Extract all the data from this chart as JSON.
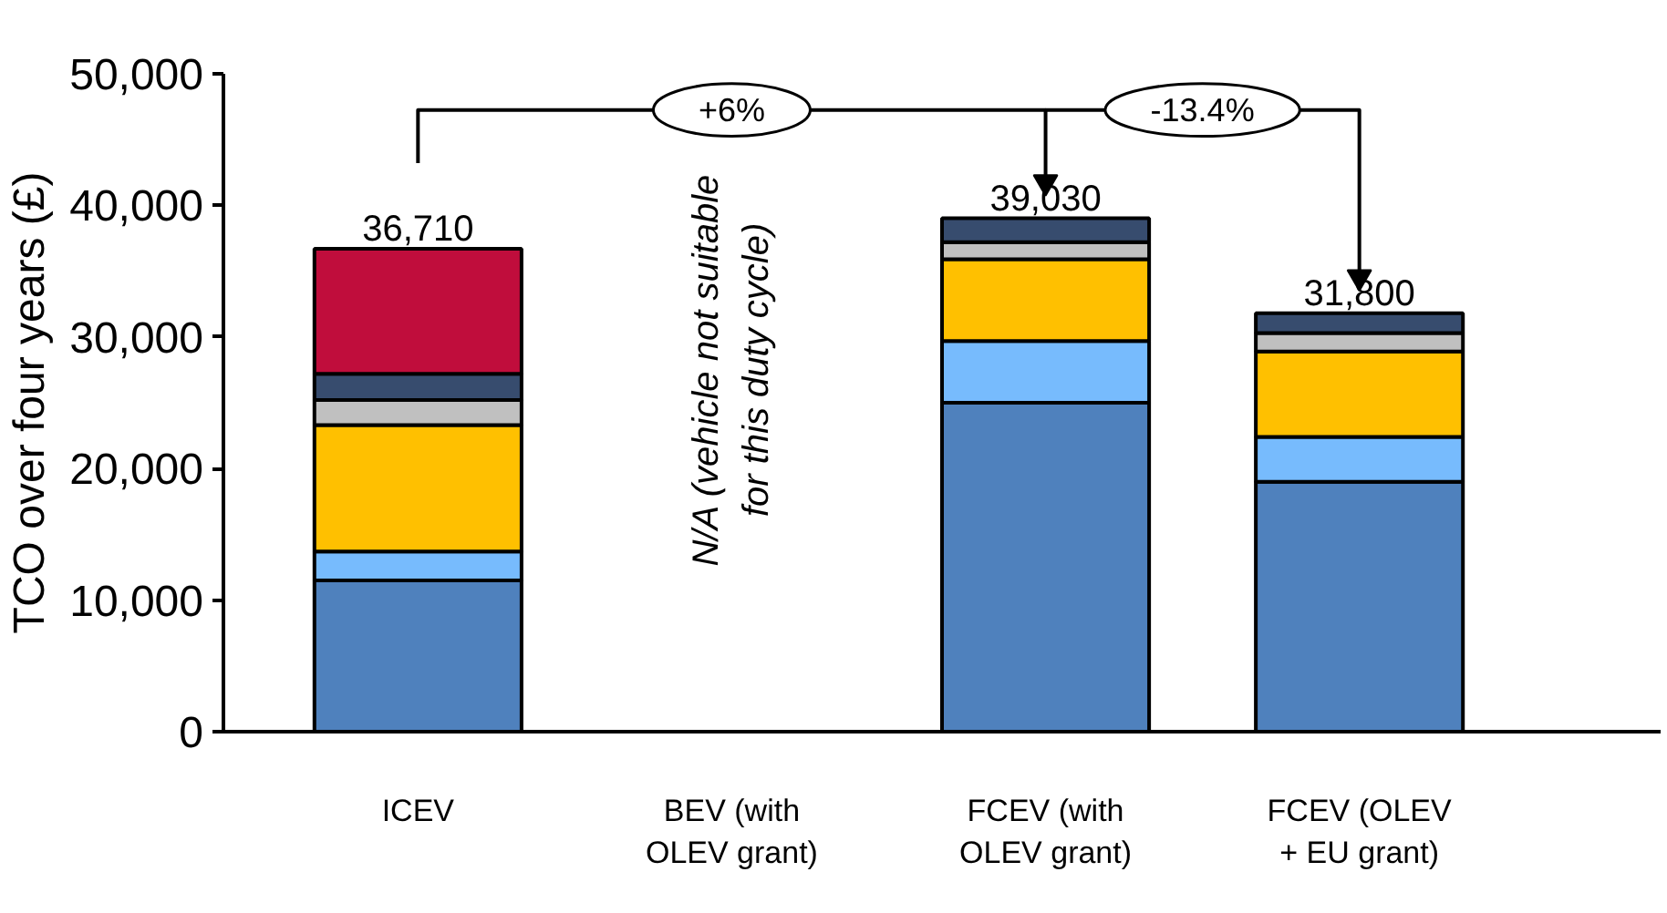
{
  "chart_data": {
    "type": "bar",
    "stacked": true,
    "ylabel": "TCO over four years (£)",
    "categories": [
      "ICEV",
      "BEV (with\nOLEV grant)",
      "FCEV (with\nOLEV grant)",
      "FCEV (OLEV\n+ EU grant)"
    ],
    "series": [
      {
        "color": "#4f81bd",
        "values": [
          11500,
          null,
          25000,
          19000
        ]
      },
      {
        "color": "#77bbfd",
        "values": [
          2200,
          null,
          4700,
          3400
        ]
      },
      {
        "color": "#ffc000",
        "values": [
          9600,
          null,
          6200,
          6500
        ]
      },
      {
        "color": "#c0c0c0",
        "values": [
          1900,
          null,
          1300,
          1400
        ]
      },
      {
        "color": "#374c6e",
        "values": [
          2000,
          null,
          1830,
          1500
        ]
      },
      {
        "color": "#c00d3c",
        "values": [
          9510,
          null,
          null,
          null
        ]
      }
    ],
    "totals": [
      "36,710",
      null,
      "39,030",
      "31,800"
    ],
    "ylim": [
      0,
      50000
    ],
    "yticks": [
      0,
      {
        "value": 10000,
        "label": "10,000"
      },
      {
        "value": 20000,
        "label": "20,000"
      },
      {
        "value": 30000,
        "label": "30,000"
      },
      {
        "value": 40000,
        "label": "40,000"
      },
      {
        "value": 50000,
        "label": "50,000"
      }
    ],
    "grid": false,
    "annotations": [
      "N/A (vehicle not suitable\nfor this duty cycle)",
      "+6%",
      "-13.4%"
    ]
  }
}
